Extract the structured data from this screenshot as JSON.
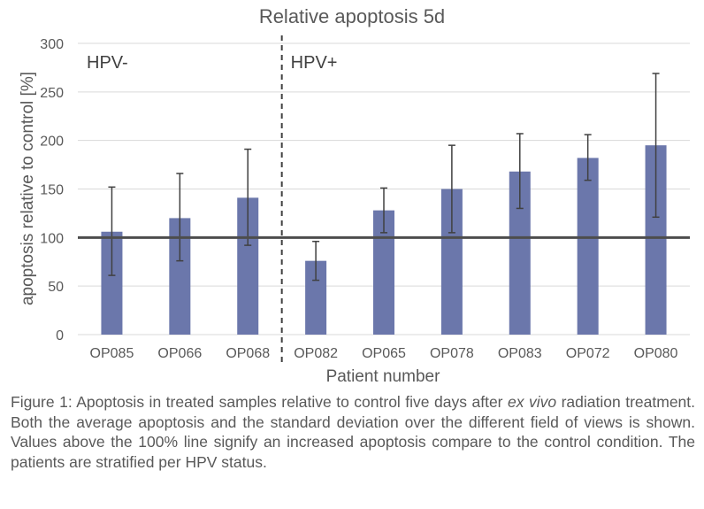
{
  "chart_data": {
    "type": "bar",
    "title": "Relative apoptosis 5d",
    "xlabel": "Patient number",
    "ylabel": "apoptosis relative to control [%]",
    "ylim": [
      0,
      300
    ],
    "yticks": [
      0,
      50,
      100,
      150,
      200,
      250,
      300
    ],
    "grid": true,
    "categories": [
      "OP085",
      "OP066",
      "OP068",
      "OP082",
      "OP065",
      "OP078",
      "OP083",
      "OP072",
      "OP080"
    ],
    "values": [
      106,
      120,
      141,
      76,
      128,
      150,
      168,
      182,
      195
    ],
    "error_low": [
      61,
      76,
      92,
      56,
      105,
      105,
      130,
      159,
      121
    ],
    "error_high": [
      152,
      166,
      191,
      96,
      151,
      195,
      207,
      206,
      269
    ],
    "reference_line": 100,
    "groups": [
      {
        "label": "HPV-",
        "count": 3
      },
      {
        "label": "HPV+",
        "count": 6
      }
    ],
    "bar_color": "#6b77ab",
    "reference_color": "#4d4d4d",
    "error_color": "#404040"
  },
  "caption": {
    "prefix": "Figure 1: Apoptosis in treated samples relative to control five days after ",
    "italic": "ex vivo",
    "suffix": " radiation treatment. Both the average apoptosis and the standard deviation over the different field of views is shown. Values above the 100% line signify an increased apoptosis compare to the control condition. The patients are stratified per HPV status."
  }
}
